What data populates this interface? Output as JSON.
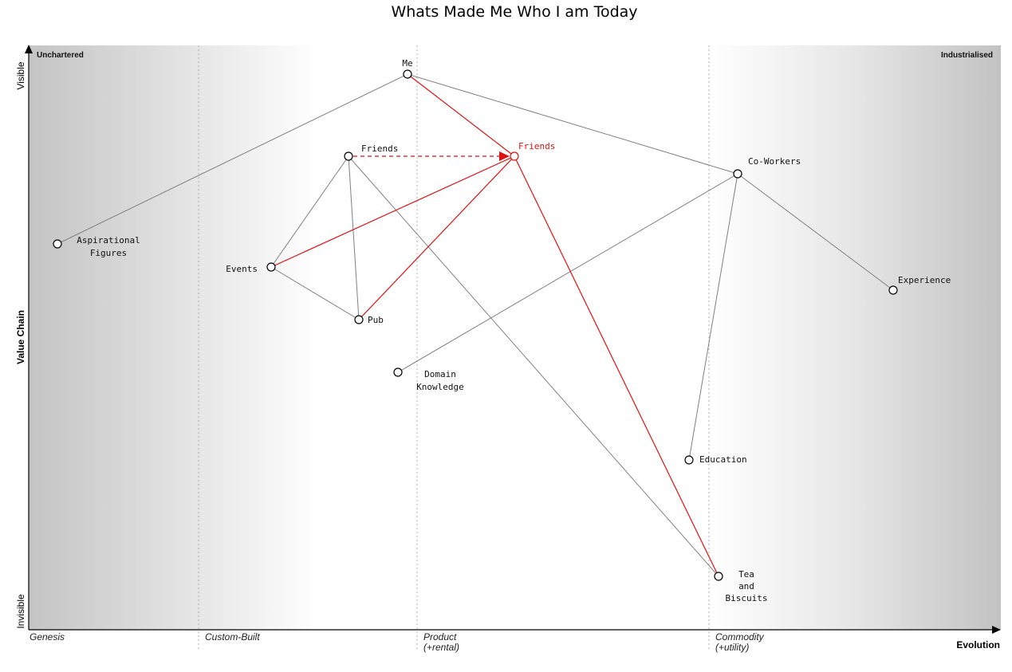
{
  "title": "Whats Made Me Who I am Today",
  "zones": {
    "left": "Unchartered",
    "right": "Industrialised"
  },
  "axis": {
    "y_label": "Value Chain",
    "y_top": "Visible",
    "y_bottom": "Invisible",
    "x_label": "Evolution"
  },
  "stages": [
    {
      "line1": "Genesis",
      "line2": ""
    },
    {
      "line1": "Custom-Built",
      "line2": ""
    },
    {
      "line1": "Product",
      "line2": "(+rental)"
    },
    {
      "line1": "Commodity",
      "line2": "(+utility)"
    }
  ],
  "colors": {
    "link": "#808080",
    "evolve": "#e01010",
    "zone_gray": "#c4c4c4"
  },
  "chart_data": {
    "type": "wardley-map",
    "components": [
      {
        "id": "me",
        "lines": [
          "Me"
        ]
      },
      {
        "id": "friends",
        "lines": [
          "Friends"
        ]
      },
      {
        "id": "friends-evolved",
        "lines": [
          "Friends"
        ]
      },
      {
        "id": "co-workers",
        "lines": [
          "Co-Workers"
        ]
      },
      {
        "id": "aspirational-figures",
        "lines": [
          "Aspirational",
          "Figures"
        ]
      },
      {
        "id": "events",
        "lines": [
          "Events"
        ]
      },
      {
        "id": "pub",
        "lines": [
          "Pub"
        ]
      },
      {
        "id": "domain-knowledge",
        "lines": [
          "Domain",
          "Knowledge"
        ]
      },
      {
        "id": "experience",
        "lines": [
          "Experience"
        ]
      },
      {
        "id": "education",
        "lines": [
          "Education"
        ]
      },
      {
        "id": "tea-and-biscuits",
        "lines": [
          "Tea",
          "and",
          "Biscuits"
        ]
      }
    ],
    "links": [
      [
        "me",
        "aspirational-figures"
      ],
      [
        "me",
        "co-workers"
      ],
      [
        "friends",
        "events"
      ],
      [
        "friends",
        "pub"
      ],
      [
        "friends",
        "tea-and-biscuits"
      ],
      [
        "events",
        "pub"
      ],
      [
        "co-workers",
        "domain-knowledge"
      ],
      [
        "co-workers",
        "education"
      ],
      [
        "co-workers",
        "experience"
      ]
    ],
    "evolved_links": [
      [
        "me",
        "friends-evolved"
      ],
      [
        "events",
        "friends-evolved"
      ],
      [
        "pub",
        "friends-evolved"
      ],
      [
        "friends-evolved",
        "tea-and-biscuits"
      ]
    ],
    "evolution": [
      [
        "friends",
        "friends-evolved"
      ]
    ]
  }
}
